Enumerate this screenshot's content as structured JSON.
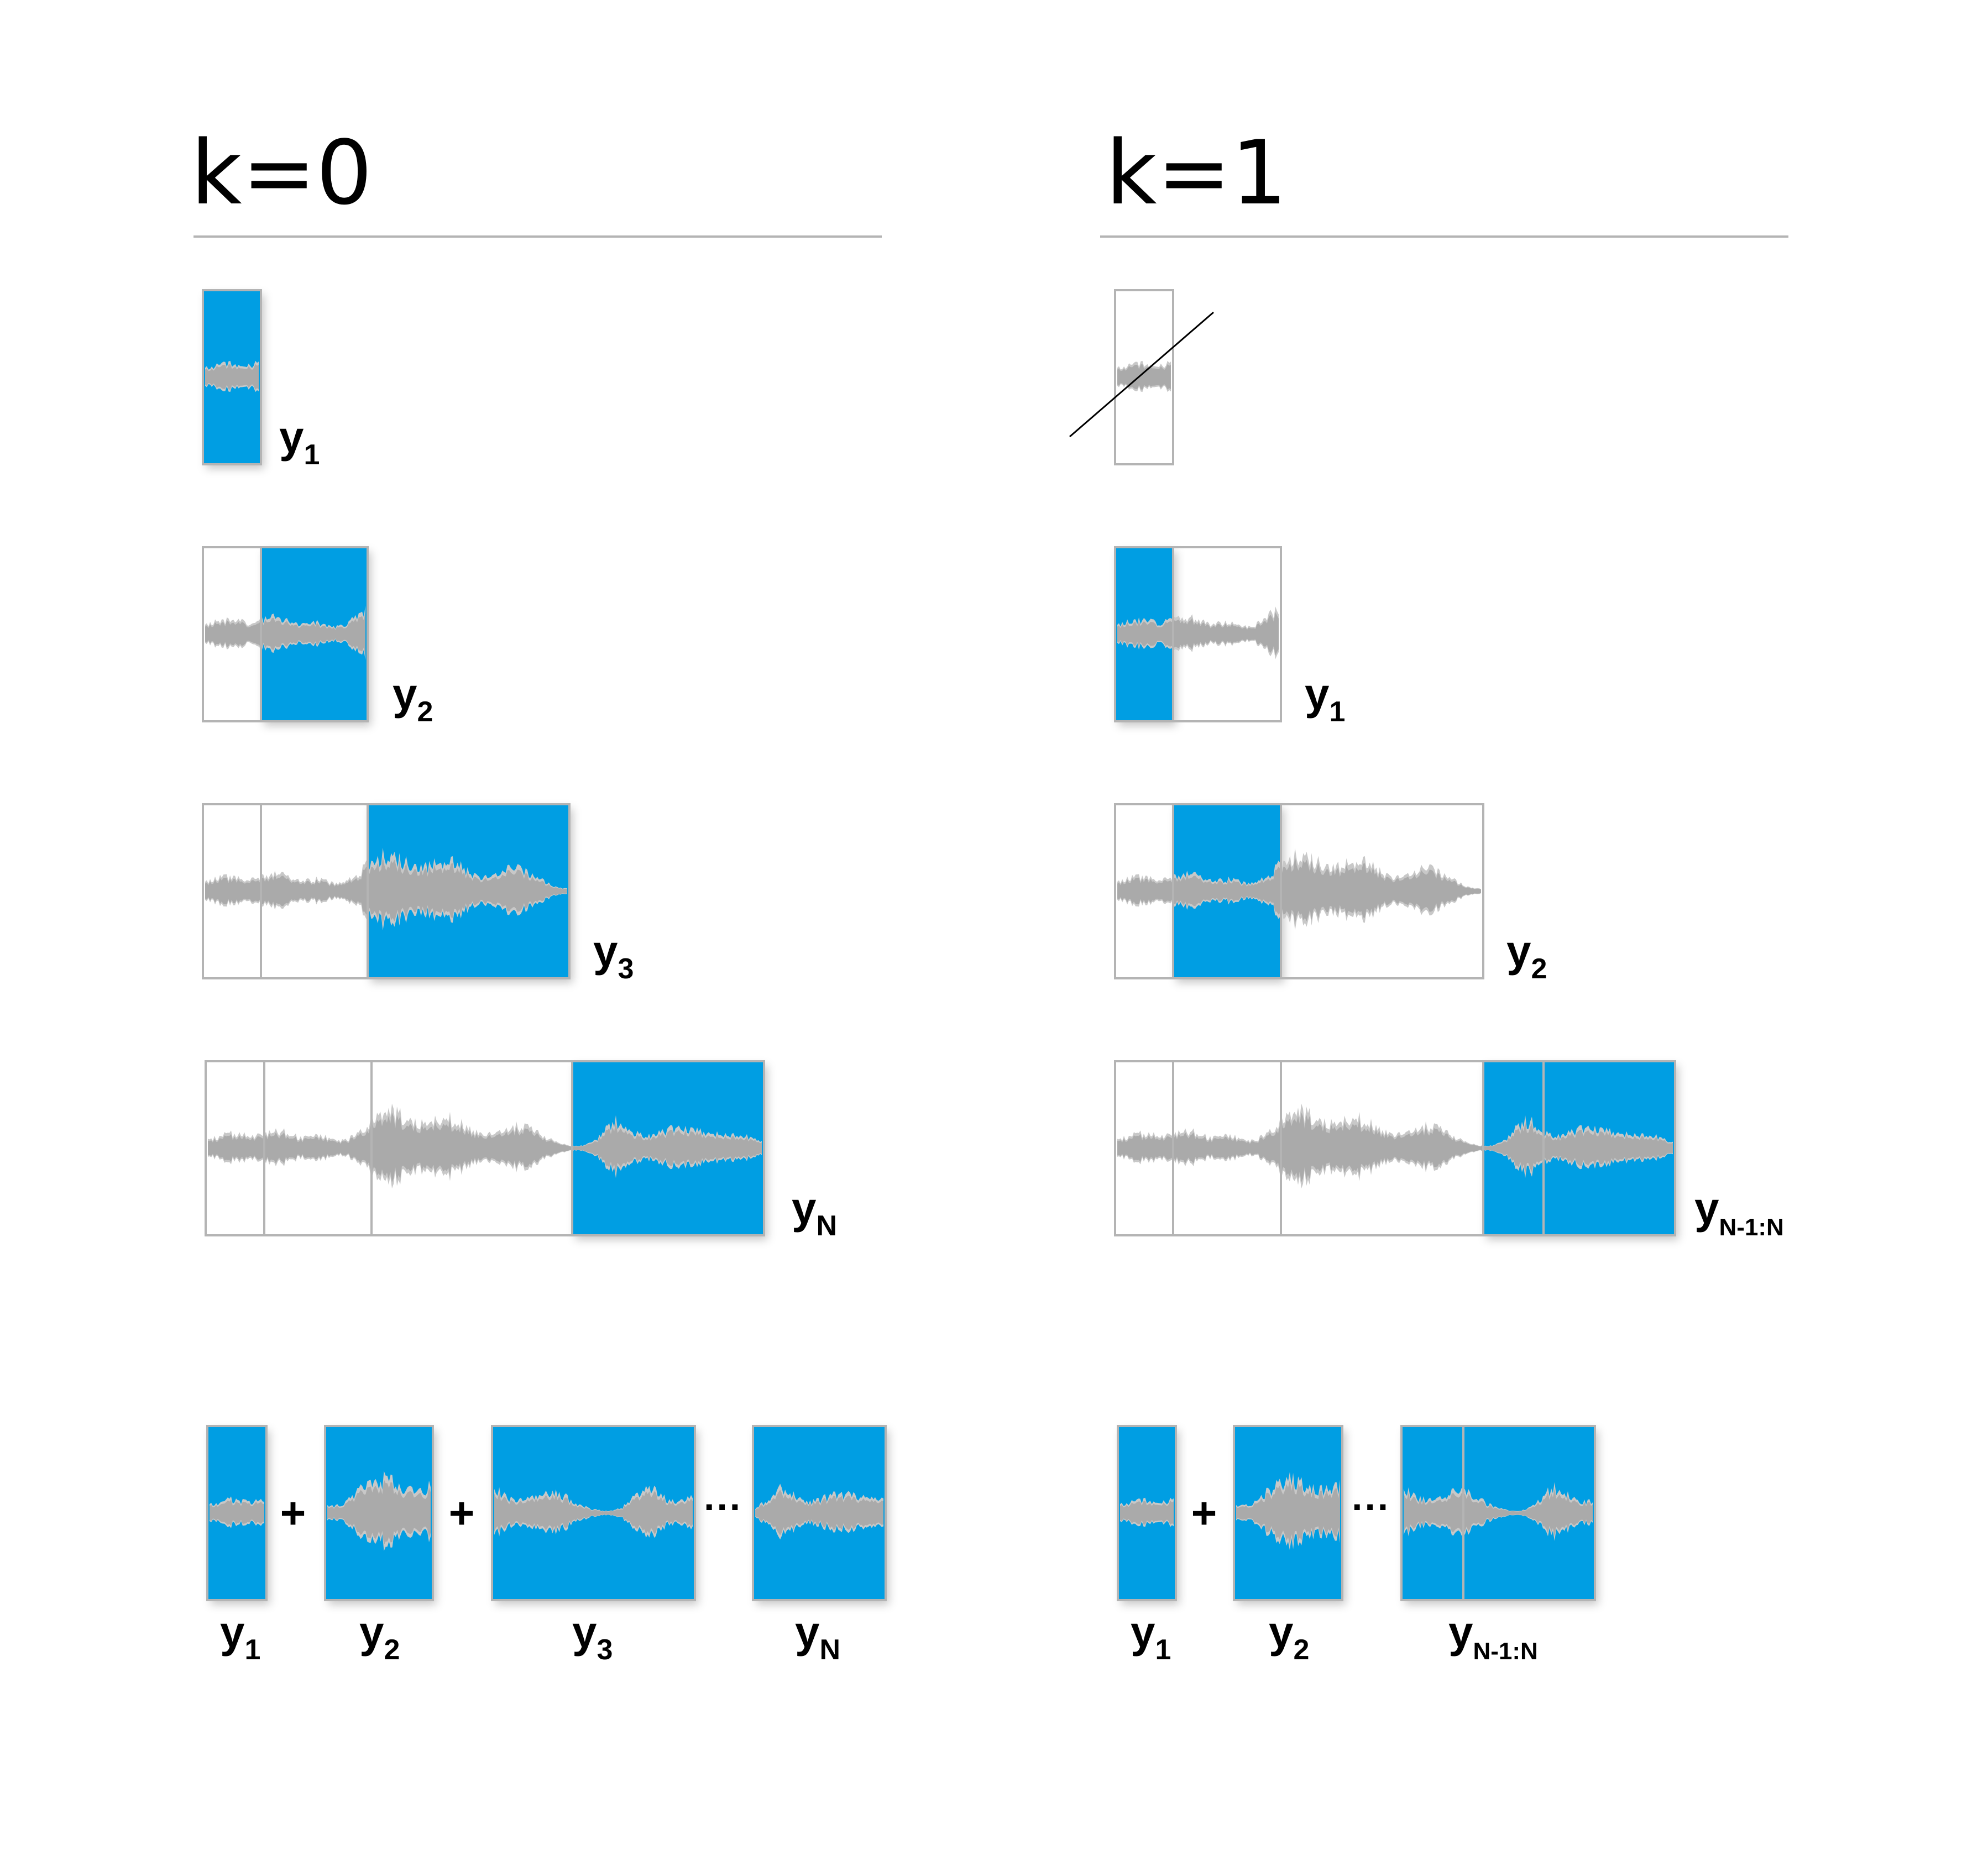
{
  "panels": [
    {
      "heading": "k=0",
      "rows": [
        {
          "segments": [
            {
              "filled": true
            }
          ],
          "label": {
            "main": "y",
            "sub": "1"
          },
          "crossed": false
        },
        {
          "segments": [
            {
              "filled": false
            },
            {
              "filled": true
            }
          ],
          "label": {
            "main": "y",
            "sub": "2"
          },
          "crossed": false
        },
        {
          "segments": [
            {
              "filled": false
            },
            {
              "filled": false
            },
            {
              "filled": true
            }
          ],
          "label": {
            "main": "y",
            "sub": "3"
          },
          "crossed": false
        },
        {
          "segments": [
            {
              "filled": false
            },
            {
              "filled": false
            },
            {
              "filled": false
            },
            {
              "filled": true
            }
          ],
          "label": {
            "main": "y",
            "sub": "N"
          },
          "crossed": false
        }
      ],
      "sum": {
        "items": [
          {
            "label": {
              "main": "y",
              "sub": "1"
            }
          },
          {
            "label": {
              "main": "y",
              "sub": "2"
            }
          },
          {
            "label": {
              "main": "y",
              "sub": "3"
            }
          },
          {
            "label": {
              "main": "y",
              "sub": "N"
            }
          }
        ],
        "operators": [
          "+",
          "+",
          "···"
        ]
      }
    },
    {
      "heading": "k=1",
      "rows": [
        {
          "segments": [
            {
              "filled": false
            }
          ],
          "label": null,
          "crossed": true
        },
        {
          "segments": [
            {
              "filled": true
            },
            {
              "filled": false
            }
          ],
          "label": {
            "main": "y",
            "sub": "1"
          },
          "crossed": false
        },
        {
          "segments": [
            {
              "filled": false
            },
            {
              "filled": true
            },
            {
              "filled": false
            }
          ],
          "label": {
            "main": "y",
            "sub": "2"
          },
          "crossed": false
        },
        {
          "segments": [
            {
              "filled": false
            },
            {
              "filled": false
            },
            {
              "filled": false
            },
            {
              "filled": true
            }
          ],
          "label": {
            "main": "y",
            "sub": "N-1:N"
          },
          "crossed": false
        }
      ],
      "sum": {
        "items": [
          {
            "label": {
              "main": "y",
              "sub": "1"
            }
          },
          {
            "label": {
              "main": "y",
              "sub": "2"
            }
          },
          {
            "label": {
              "main": "y",
              "sub": "N-1:N"
            }
          }
        ],
        "operators": [
          "+",
          "···"
        ]
      }
    }
  ],
  "colors": {
    "fill": "#009ee3",
    "wave": "#aaaaaa",
    "wave_light": "#c8c8c8",
    "outline": "#b4b4b4",
    "rule": "#b4b4b4",
    "text": "#000000"
  }
}
